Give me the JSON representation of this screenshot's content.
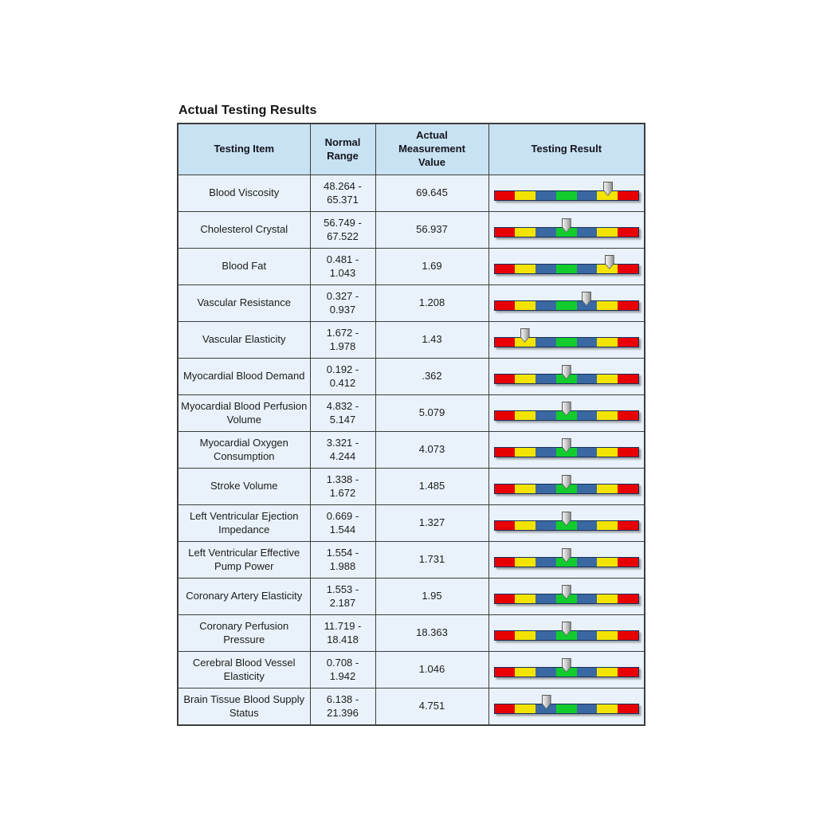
{
  "title": "Actual Testing Results",
  "colors": {
    "header_bg": "#c9e2f3",
    "row_bg": "#e9f2fa",
    "grid_border": "#3d3d3d",
    "bar_border": "#16305e",
    "bar_red": "#e80000",
    "bar_yellow": "#f2e400",
    "bar_blue": "#3a68a2",
    "bar_green": "#12cc2e",
    "marker_fill": "#c9c9c9",
    "marker_border": "#5a5a5a"
  },
  "table": {
    "headers": [
      {
        "label": "Testing Item"
      },
      {
        "label": "Normal Range"
      },
      {
        "label": "Actual Measurement Value"
      },
      {
        "label": "Testing Result"
      }
    ],
    "bar_segments": [
      "red",
      "yellow",
      "blue",
      "green",
      "blue",
      "yellow",
      "red"
    ],
    "rows": [
      {
        "item": "Blood Viscosity",
        "range": "48.264 - 65.371",
        "value": "69.645",
        "marker_pos": 0.79
      },
      {
        "item": "Cholesterol Crystal",
        "range": "56.749 - 67.522",
        "value": "56.937",
        "marker_pos": 0.5
      },
      {
        "item": "Blood Fat",
        "range": "0.481 - 1.043",
        "value": "1.69",
        "marker_pos": 0.8
      },
      {
        "item": "Vascular Resistance",
        "range": "0.327 - 0.937",
        "value": "1.208",
        "marker_pos": 0.64
      },
      {
        "item": "Vascular Elasticity",
        "range": "1.672 - 1.978",
        "value": "1.43",
        "marker_pos": 0.21
      },
      {
        "item": "Myocardial Blood Demand",
        "range": "0.192 - 0.412",
        "value": ".362",
        "marker_pos": 0.5
      },
      {
        "item": "Myocardial Blood Perfusion Volume",
        "range": "4.832 - 5.147",
        "value": "5.079",
        "marker_pos": 0.5
      },
      {
        "item": "Myocardial Oxygen Consumption",
        "range": "3.321 - 4.244",
        "value": "4.073",
        "marker_pos": 0.5
      },
      {
        "item": "Stroke Volume",
        "range": "1.338 - 1.672",
        "value": "1.485",
        "marker_pos": 0.5
      },
      {
        "item": "Left Ventricular Ejection Impedance",
        "range": "0.669 - 1.544",
        "value": "1.327",
        "marker_pos": 0.5
      },
      {
        "item": "Left Ventricular Effective Pump Power",
        "range": "1.554 - 1.988",
        "value": "1.731",
        "marker_pos": 0.5
      },
      {
        "item": "Coronary Artery Elasticity",
        "range": "1.553 - 2.187",
        "value": "1.95",
        "marker_pos": 0.5
      },
      {
        "item": "Coronary Perfusion Pressure",
        "range": "11.719 - 18.418",
        "value": "18.363",
        "marker_pos": 0.5
      },
      {
        "item": "Cerebral Blood Vessel Elasticity",
        "range": "0.708 - 1.942",
        "value": "1.046",
        "marker_pos": 0.5
      },
      {
        "item": "Brain Tissue Blood Supply Status",
        "range": "6.138 - 21.396",
        "value": "4.751",
        "marker_pos": 0.36
      }
    ]
  }
}
